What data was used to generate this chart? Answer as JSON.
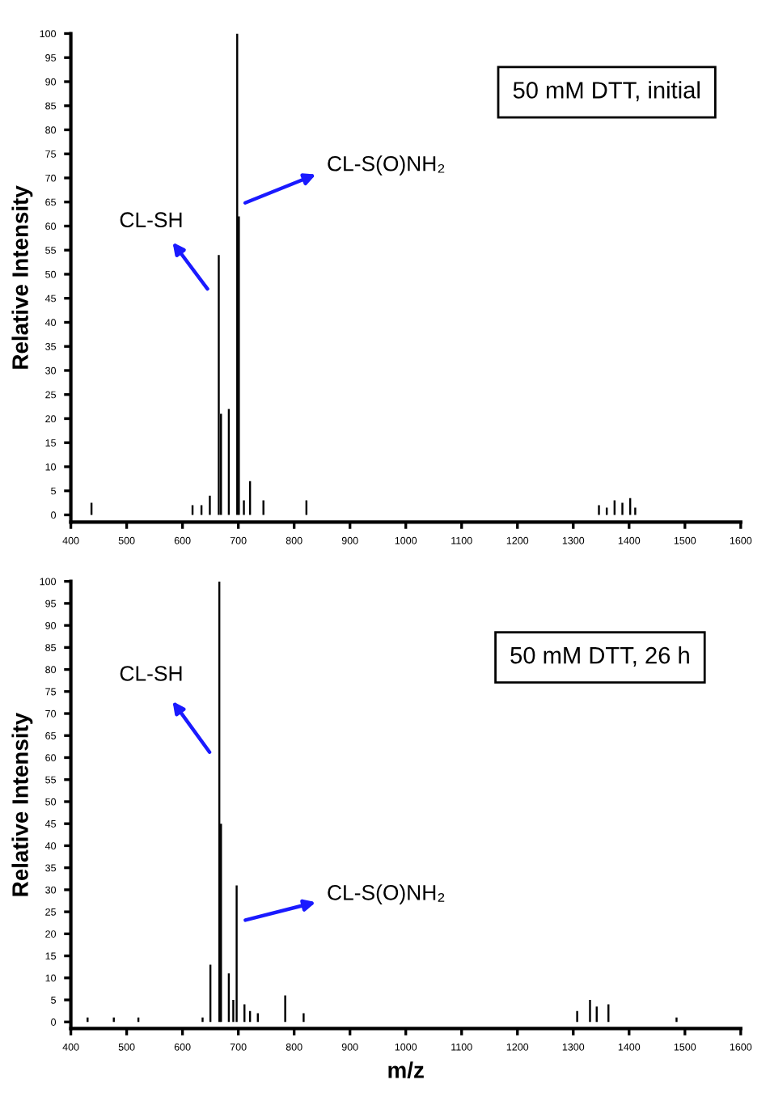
{
  "chart_data": [
    {
      "type": "bar",
      "title": "50 mM DTT, initial",
      "ylabel": "Relative Intensity",
      "color": "#000000",
      "x": [
        437,
        618,
        634,
        649,
        665,
        669,
        683,
        698,
        701,
        710,
        721,
        745,
        822,
        1346,
        1360,
        1374,
        1388,
        1402,
        1411
      ],
      "values": [
        2.5,
        2,
        2,
        4,
        54,
        21,
        22,
        100,
        62,
        3,
        7,
        3,
        3,
        2,
        1.5,
        3,
        2.5,
        3.5,
        1.5
      ],
      "annotations": [
        "CL-SH",
        "CL-S(O)NH₂"
      ],
      "xlim": [
        400,
        1600
      ],
      "xticks": [
        400,
        500,
        600,
        700,
        800,
        900,
        1000,
        1100,
        1200,
        1300,
        1400,
        1500,
        1600
      ],
      "ylim": [
        -1.5,
        100
      ],
      "yticks": [
        0,
        5,
        10,
        15,
        20,
        25,
        30,
        35,
        40,
        45,
        50,
        55,
        60,
        65,
        70,
        75,
        80,
        85,
        90,
        95,
        100
      ],
      "grid": false,
      "legend": false
    },
    {
      "type": "bar",
      "title": "50 mM DTT, 26 h",
      "xlabel": "m/z",
      "ylabel": "Relative Intensity",
      "color": "#000000",
      "x": [
        430,
        477,
        521,
        636,
        650,
        666,
        669,
        683,
        691,
        697,
        711,
        721,
        735,
        784,
        817,
        1307,
        1330,
        1342,
        1363,
        1485
      ],
      "values": [
        1,
        1,
        1,
        1,
        13,
        100,
        45,
        11,
        5,
        31,
        4,
        2.5,
        2,
        6,
        2,
        2.5,
        5,
        3.5,
        4,
        1
      ],
      "annotations": [
        "CL-SH",
        "CL-S(O)NH₂"
      ],
      "xlim": [
        400,
        1600
      ],
      "xticks": [
        400,
        500,
        600,
        700,
        800,
        900,
        1000,
        1100,
        1200,
        1300,
        1400,
        1500,
        1600
      ],
      "ylim": [
        -1.5,
        100
      ],
      "yticks": [
        0,
        5,
        10,
        15,
        20,
        25,
        30,
        35,
        40,
        45,
        50,
        55,
        60,
        65,
        70,
        75,
        80,
        85,
        90,
        95,
        100
      ],
      "grid": false,
      "legend": false
    }
  ]
}
